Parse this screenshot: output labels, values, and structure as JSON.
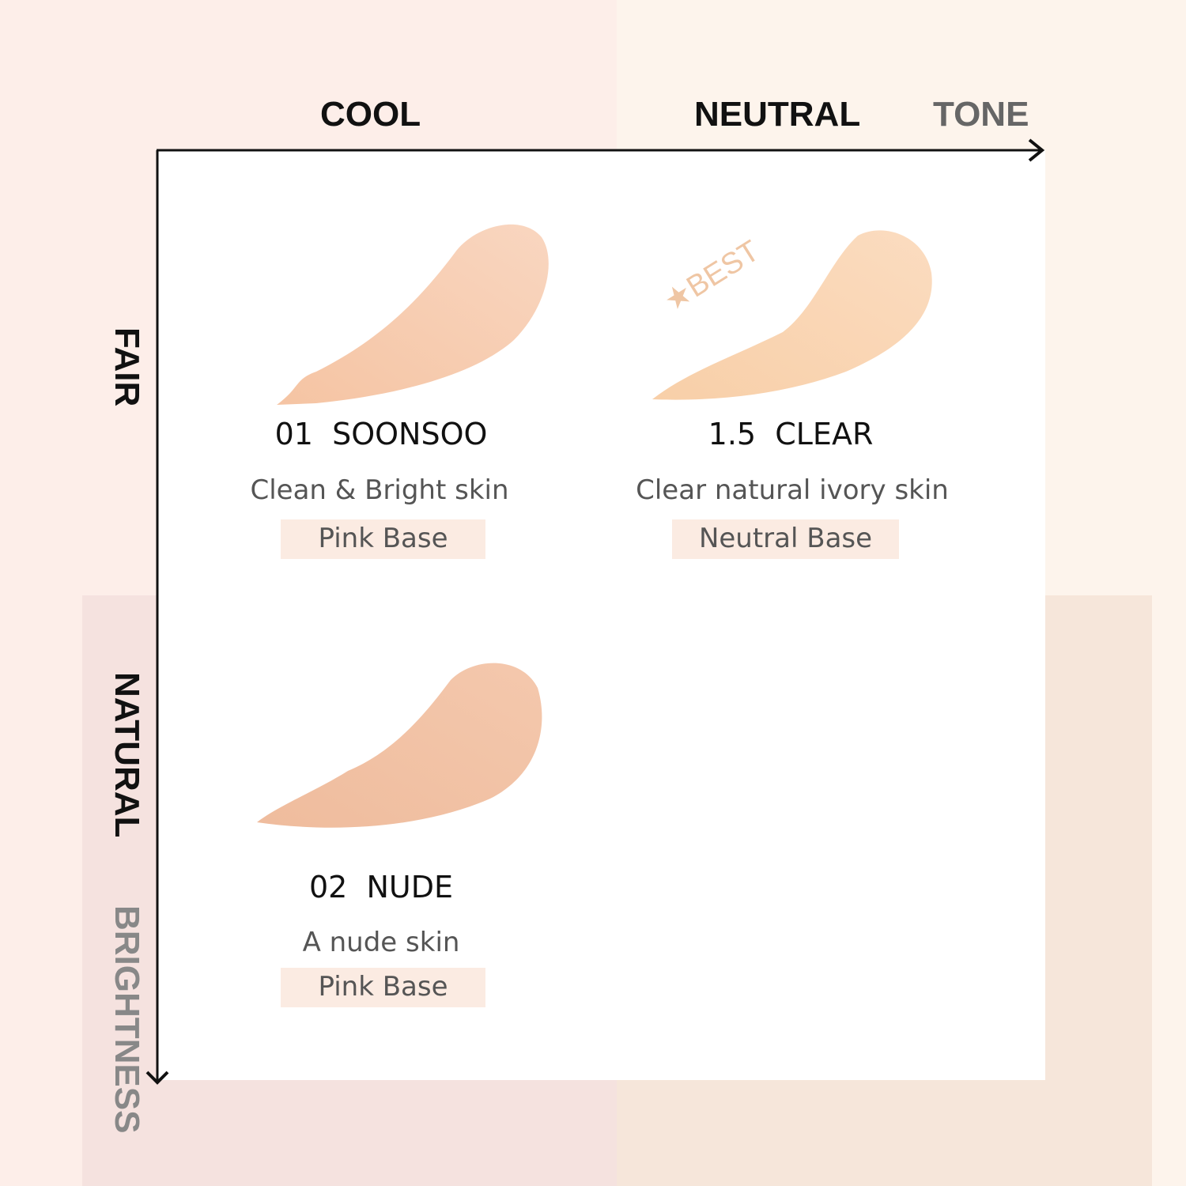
{
  "axes": {
    "x_categories": [
      "COOL",
      "NEUTRAL"
    ],
    "x_title": "TONE",
    "y_categories": [
      "FAIR",
      "NATURAL"
    ],
    "y_title": "BRIGHTNESS"
  },
  "shades": [
    {
      "name": "01  SOONSOO",
      "description": "Clean & Bright skin",
      "base": "Pink Base",
      "color": "#f6c7a6"
    },
    {
      "name": "1.5  CLEAR",
      "description": "Clear natural ivory skin",
      "base": "Neutral Base",
      "color": "#f8cfa8",
      "badge": "★BEST"
    },
    {
      "name": "02  NUDE",
      "description": "A nude skin",
      "base": "Pink Base",
      "color": "#f0bc9c"
    }
  ],
  "colors": {
    "cool_bg": "#fdeee9",
    "neutral_bg": "#fdf4ec",
    "badge": "#efc6a4",
    "base_tag": "#fbebe2"
  }
}
